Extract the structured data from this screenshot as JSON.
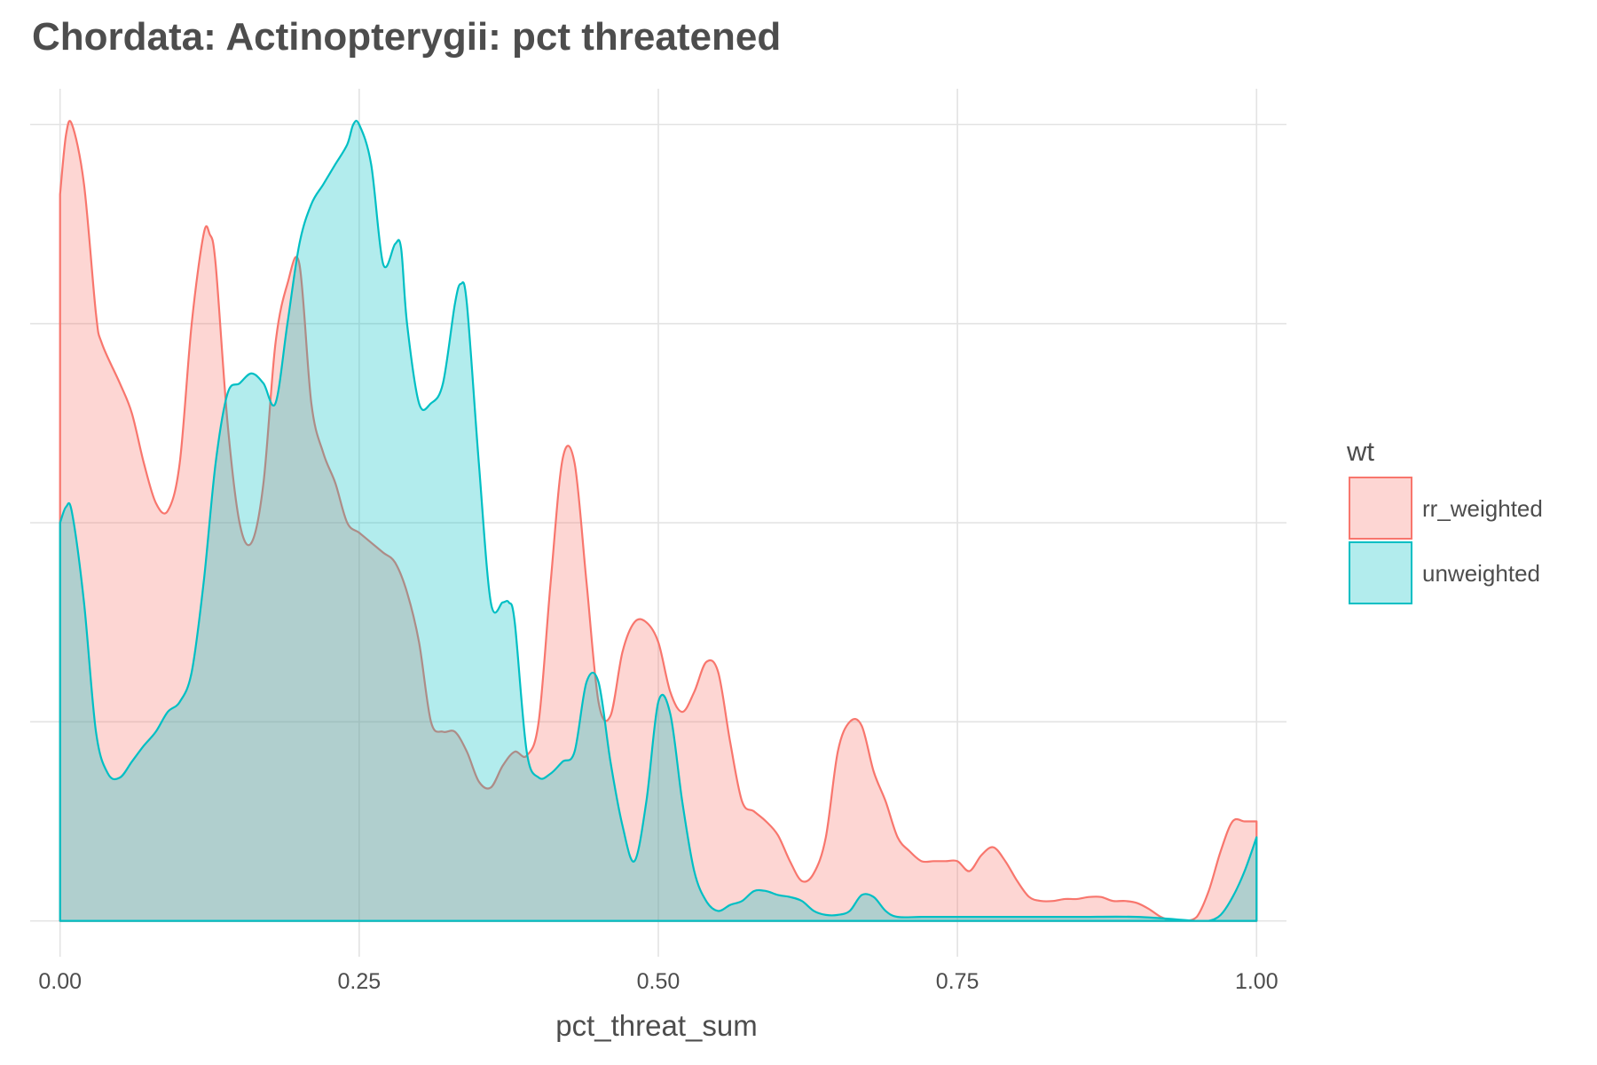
{
  "chart_data": {
    "type": "area",
    "title": "Chordata: Actinopterygii: pct threatened",
    "xlabel": "pct_threat_sum",
    "ylabel": "",
    "xlim": [
      -0.025,
      1.025
    ],
    "ylim": [
      -0.18,
      4.18
    ],
    "x_ticks": [
      {
        "value": 0.0,
        "label": "0.00"
      },
      {
        "value": 0.25,
        "label": "0.25"
      },
      {
        "value": 0.5,
        "label": "0.50"
      },
      {
        "value": 0.75,
        "label": "0.75"
      },
      {
        "value": 1.0,
        "label": "1.00"
      }
    ],
    "y_gridlines": [
      0,
      1,
      2,
      3,
      4
    ],
    "y_tick_labels_shown": false,
    "grid": true,
    "legend": {
      "title": "wt",
      "position": "right",
      "entries": [
        "rr_weighted",
        "unweighted"
      ]
    },
    "series": [
      {
        "name": "rr_weighted",
        "line_color": "#F8766D",
        "fill_color": "#F8766D",
        "fill_opacity": 0.3,
        "x": [
          0.0,
          0.005,
          0.01,
          0.02,
          0.03,
          0.035,
          0.05,
          0.06,
          0.07,
          0.08,
          0.09,
          0.1,
          0.11,
          0.12,
          0.125,
          0.13,
          0.14,
          0.15,
          0.16,
          0.17,
          0.18,
          0.19,
          0.2,
          0.21,
          0.22,
          0.23,
          0.24,
          0.25,
          0.26,
          0.27,
          0.28,
          0.29,
          0.3,
          0.31,
          0.32,
          0.33,
          0.34,
          0.35,
          0.36,
          0.37,
          0.38,
          0.39,
          0.4,
          0.41,
          0.42,
          0.43,
          0.44,
          0.45,
          0.46,
          0.47,
          0.48,
          0.49,
          0.5,
          0.51,
          0.52,
          0.53,
          0.54,
          0.55,
          0.56,
          0.57,
          0.58,
          0.59,
          0.6,
          0.61,
          0.62,
          0.63,
          0.64,
          0.65,
          0.66,
          0.67,
          0.68,
          0.69,
          0.7,
          0.71,
          0.72,
          0.73,
          0.74,
          0.75,
          0.76,
          0.77,
          0.78,
          0.79,
          0.8,
          0.81,
          0.82,
          0.83,
          0.84,
          0.85,
          0.86,
          0.87,
          0.88,
          0.89,
          0.9,
          0.91,
          0.92,
          0.93,
          0.94,
          0.95,
          0.96,
          0.97,
          0.98,
          0.99,
          1.0
        ],
        "y": [
          3.65,
          3.95,
          4.0,
          3.7,
          3.05,
          2.9,
          2.7,
          2.55,
          2.3,
          2.1,
          2.06,
          2.3,
          3.0,
          3.45,
          3.45,
          3.3,
          2.5,
          2.0,
          1.9,
          2.2,
          2.9,
          3.2,
          3.3,
          2.6,
          2.35,
          2.2,
          2.0,
          1.95,
          1.9,
          1.85,
          1.8,
          1.65,
          1.4,
          1.0,
          0.95,
          0.95,
          0.85,
          0.7,
          0.67,
          0.78,
          0.85,
          0.83,
          1.0,
          1.7,
          2.32,
          2.3,
          1.7,
          1.1,
          1.03,
          1.35,
          1.5,
          1.5,
          1.4,
          1.15,
          1.05,
          1.15,
          1.3,
          1.25,
          0.9,
          0.6,
          0.55,
          0.5,
          0.43,
          0.3,
          0.2,
          0.24,
          0.42,
          0.85,
          1.0,
          0.98,
          0.75,
          0.6,
          0.42,
          0.35,
          0.3,
          0.3,
          0.3,
          0.3,
          0.25,
          0.33,
          0.37,
          0.3,
          0.2,
          0.12,
          0.1,
          0.1,
          0.11,
          0.11,
          0.12,
          0.12,
          0.1,
          0.1,
          0.09,
          0.06,
          0.02,
          0.0,
          0.0,
          0.02,
          0.15,
          0.35,
          0.5,
          0.5,
          0.5
        ]
      },
      {
        "name": "unweighted",
        "line_color": "#00BFC4",
        "fill_color": "#00BFC4",
        "fill_opacity": 0.3,
        "x": [
          0.0,
          0.005,
          0.01,
          0.02,
          0.03,
          0.04,
          0.05,
          0.06,
          0.07,
          0.08,
          0.09,
          0.1,
          0.11,
          0.12,
          0.13,
          0.14,
          0.15,
          0.16,
          0.17,
          0.18,
          0.19,
          0.2,
          0.21,
          0.22,
          0.23,
          0.24,
          0.245,
          0.25,
          0.26,
          0.27,
          0.28,
          0.285,
          0.29,
          0.3,
          0.31,
          0.32,
          0.33,
          0.335,
          0.34,
          0.35,
          0.36,
          0.37,
          0.375,
          0.38,
          0.39,
          0.4,
          0.41,
          0.42,
          0.43,
          0.44,
          0.45,
          0.46,
          0.47,
          0.48,
          0.49,
          0.5,
          0.51,
          0.52,
          0.53,
          0.54,
          0.55,
          0.56,
          0.57,
          0.58,
          0.59,
          0.6,
          0.61,
          0.62,
          0.63,
          0.64,
          0.65,
          0.66,
          0.67,
          0.68,
          0.69,
          0.7,
          0.72,
          0.75,
          0.8,
          0.85,
          0.9,
          0.95,
          0.96,
          0.97,
          0.98,
          0.99,
          1.0
        ],
        "y": [
          2.0,
          2.08,
          2.05,
          1.6,
          0.95,
          0.74,
          0.72,
          0.8,
          0.88,
          0.95,
          1.05,
          1.1,
          1.25,
          1.7,
          2.3,
          2.65,
          2.7,
          2.75,
          2.7,
          2.6,
          3.0,
          3.4,
          3.6,
          3.7,
          3.8,
          3.9,
          4.0,
          4.0,
          3.8,
          3.3,
          3.4,
          3.38,
          3.0,
          2.6,
          2.6,
          2.7,
          3.1,
          3.2,
          3.1,
          2.3,
          1.6,
          1.6,
          1.6,
          1.5,
          0.85,
          0.72,
          0.74,
          0.8,
          0.85,
          1.2,
          1.2,
          0.8,
          0.48,
          0.3,
          0.6,
          1.1,
          1.04,
          0.6,
          0.25,
          0.1,
          0.05,
          0.08,
          0.1,
          0.15,
          0.15,
          0.13,
          0.12,
          0.1,
          0.05,
          0.03,
          0.03,
          0.05,
          0.13,
          0.12,
          0.05,
          0.02,
          0.02,
          0.02,
          0.02,
          0.02,
          0.02,
          0.0,
          0.0,
          0.03,
          0.12,
          0.25,
          0.42
        ]
      }
    ]
  }
}
